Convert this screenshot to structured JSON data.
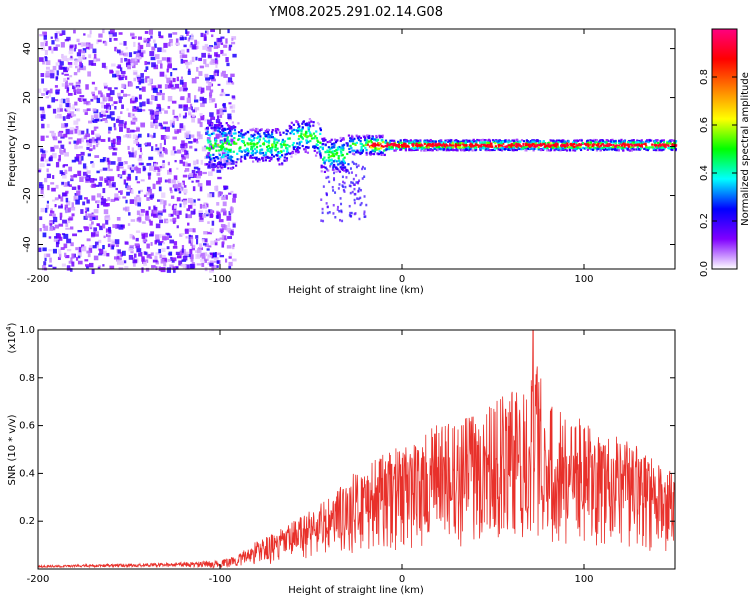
{
  "title": "YM08.2025.291.02.14.G08",
  "chart_data": [
    {
      "type": "heatmap",
      "name": "spectrogram",
      "xlabel": "Height of straight line (km)",
      "ylabel": "Frequency (Hz)",
      "xlim": [
        -200,
        150
      ],
      "ylim": [
        -50,
        48
      ],
      "xticks": [
        -200,
        -100,
        0,
        100
      ],
      "yticks": [
        -40,
        -20,
        0,
        20,
        40
      ],
      "description_of_features": {
        "noise_region_km": [
          -200,
          -93
        ],
        "signal_start_km": -105,
        "signal_frequency_hz": 1
      },
      "colorbar": {
        "label": "Normalized spectral amplitude",
        "range": [
          0,
          1
        ],
        "ticks": [
          0,
          0.2,
          0.4,
          0.6,
          0.8
        ],
        "tick_labels": [
          "0.0",
          "0.2",
          "0.4",
          "0.6",
          "0.8"
        ],
        "colors": [
          "#ffffff",
          "#8000ff",
          "#0000ff",
          "#00ffff",
          "#00ff00",
          "#ffff00",
          "#ff8000",
          "#ff0000",
          "#ff0080"
        ]
      }
    },
    {
      "type": "line",
      "name": "snr",
      "xlabel": "Height of straight line (km)",
      "ylabel": "SNR (10 * v/v)",
      "y_multiplier_label": "(x10",
      "y_multiplier_exp": "4",
      "xlim": [
        -200,
        150
      ],
      "ylim": [
        0,
        1.0
      ],
      "xticks": [
        -200,
        -100,
        0,
        100
      ],
      "yticks": [
        0.2,
        0.4,
        0.6,
        0.8,
        1.0
      ],
      "ytick_labels": [
        "0.2",
        "0.4",
        "0.6",
        "0.8",
        "1.0"
      ],
      "color": "#e8302a",
      "envelope": {
        "x": [
          -200,
          -130,
          -100,
          -90,
          -80,
          -70,
          -60,
          -50,
          -40,
          -30,
          -20,
          -10,
          0,
          10,
          20,
          30,
          40,
          50,
          60,
          70,
          72,
          80,
          90,
          100,
          110,
          120,
          130,
          140,
          150
        ],
        "y": [
          0.015,
          0.025,
          0.035,
          0.06,
          0.12,
          0.15,
          0.2,
          0.26,
          0.3,
          0.38,
          0.44,
          0.48,
          0.52,
          0.54,
          0.62,
          0.6,
          0.68,
          0.72,
          0.74,
          0.8,
          1.0,
          0.7,
          0.66,
          0.62,
          0.54,
          0.56,
          0.52,
          0.44,
          0.4
        ]
      }
    }
  ]
}
